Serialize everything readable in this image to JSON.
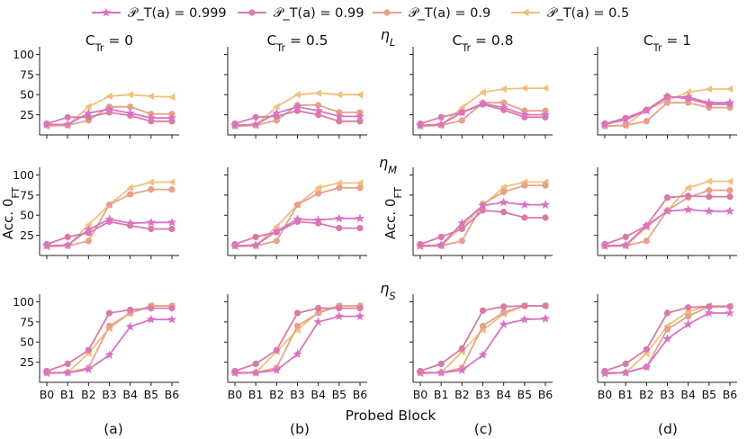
{
  "colors": {
    "p0999": "#d973c4",
    "p099": "#d97aa8",
    "p09": "#e8a08a",
    "p05": "#f0c07e"
  },
  "legend": [
    {
      "key": "p0999",
      "label": "𝒫_T(a) = 0.999",
      "marker": "star"
    },
    {
      "key": "p099",
      "label": "𝒫_T(a) = 0.99",
      "marker": "circle"
    },
    {
      "key": "p09",
      "label": "𝒫_T(a) = 0.9",
      "marker": "circle"
    },
    {
      "key": "p05",
      "label": "𝒫_T(a) = 0.5",
      "marker": "triangle-left"
    }
  ],
  "row_titles": [
    "η_L",
    "η_M",
    "η_S"
  ],
  "col_titles": [
    "C_Tr = 0",
    "C_Tr = 0.5",
    "C_Tr = 0.8",
    "C_Tr = 1"
  ],
  "col_letters": [
    "(a)",
    "(b)",
    "(c)",
    "(d)"
  ],
  "xlabel": "Probed Block",
  "ylabel": "Acc. 0_FT",
  "chart_data": {
    "type": "line",
    "categories": [
      "B0",
      "B1",
      "B2",
      "B3",
      "B4",
      "B5",
      "B6"
    ],
    "yticks": [
      25,
      50,
      75,
      100
    ],
    "ylim": [
      0,
      105
    ],
    "rows": [
      {
        "name": "η_L",
        "panels": [
          {
            "series": {
              "p0999": [
                13,
                13,
                27,
                32,
                27,
                21,
                21
              ],
              "p099": [
                14,
                22,
                22,
                28,
                24,
                17,
                17
              ],
              "p09": [
                12,
                12,
                18,
                35,
                35,
                26,
                26
              ],
              "p05": [
                11,
                12,
                35,
                48,
                50,
                48,
                47
              ]
            }
          },
          {
            "series": {
              "p0999": [
                12,
                13,
                27,
                35,
                30,
                23,
                23
              ],
              "p099": [
                14,
                22,
                23,
                30,
                25,
                17,
                17
              ],
              "p09": [
                11,
                12,
                18,
                37,
                37,
                28,
                28
              ],
              "p05": [
                11,
                12,
                35,
                50,
                52,
                50,
                50
              ]
            }
          },
          {
            "series": {
              "p0999": [
                12,
                13,
                28,
                39,
                34,
                25,
                25
              ],
              "p099": [
                14,
                22,
                28,
                38,
                31,
                22,
                22
              ],
              "p09": [
                11,
                12,
                18,
                40,
                40,
                30,
                30
              ],
              "p05": [
                11,
                12,
                34,
                53,
                57,
                58,
                58
              ]
            }
          },
          {
            "series": {
              "p0999": [
                13,
                19,
                30,
                47,
                47,
                40,
                40
              ],
              "p099": [
                14,
                21,
                31,
                48,
                45,
                38,
                38
              ],
              "p09": [
                11,
                12,
                17,
                40,
                40,
                34,
                34
              ],
              "p05": [
                11,
                12,
                31,
                43,
                53,
                57,
                57
              ]
            }
          }
        ]
      },
      {
        "name": "η_M",
        "panels": [
          {
            "series": {
              "p0999": [
                12,
                13,
                32,
                45,
                40,
                41,
                41
              ],
              "p099": [
                14,
                23,
                28,
                42,
                37,
                33,
                33
              ],
              "p09": [
                12,
                12,
                18,
                63,
                76,
                82,
                82
              ],
              "p05": [
                11,
                12,
                38,
                63,
                84,
                91,
                91
              ]
            }
          },
          {
            "series": {
              "p0999": [
                12,
                13,
                30,
                45,
                44,
                46,
                46
              ],
              "p099": [
                14,
                23,
                29,
                42,
                40,
                34,
                34
              ],
              "p09": [
                12,
                12,
                18,
                63,
                77,
                84,
                84
              ],
              "p05": [
                11,
                12,
                36,
                63,
                84,
                90,
                90
              ]
            }
          },
          {
            "series": {
              "p0999": [
                12,
                13,
                40,
                62,
                66,
                63,
                63
              ],
              "p099": [
                14,
                23,
                33,
                56,
                54,
                47,
                47
              ],
              "p09": [
                12,
                12,
                18,
                64,
                79,
                87,
                87
              ],
              "p05": [
                11,
                12,
                36,
                62,
                85,
                91,
                91
              ]
            }
          },
          {
            "series": {
              "p0999": [
                12,
                13,
                37,
                55,
                57,
                55,
                55
              ],
              "p099": [
                14,
                23,
                37,
                72,
                74,
                73,
                73
              ],
              "p09": [
                12,
                12,
                18,
                56,
                72,
                81,
                81
              ],
              "p05": [
                11,
                12,
                35,
                56,
                84,
                92,
                92
              ]
            }
          }
        ]
      },
      {
        "name": "η_S",
        "panels": [
          {
            "series": {
              "p0999": [
                12,
                12,
                16,
                34,
                69,
                78,
                78
              ],
              "p099": [
                14,
                23,
                40,
                86,
                90,
                92,
                92
              ],
              "p09": [
                12,
                12,
                18,
                70,
                86,
                95,
                95
              ],
              "p05": [
                11,
                12,
                36,
                67,
                86,
                95,
                95
              ]
            }
          },
          {
            "series": {
              "p0999": [
                12,
                12,
                15,
                35,
                75,
                82,
                82
              ],
              "p099": [
                14,
                23,
                40,
                86,
                92,
                92,
                92
              ],
              "p09": [
                12,
                12,
                18,
                70,
                86,
                95,
                95
              ],
              "p05": [
                11,
                12,
                38,
                65,
                87,
                95,
                95
              ]
            }
          },
          {
            "series": {
              "p0999": [
                12,
                12,
                15,
                34,
                72,
                78,
                79
              ],
              "p099": [
                14,
                23,
                42,
                89,
                94,
                95,
                95
              ],
              "p09": [
                12,
                12,
                18,
                70,
                87,
                95,
                95
              ],
              "p05": [
                11,
                12,
                38,
                65,
                85,
                95,
                95
              ]
            }
          },
          {
            "series": {
              "p0999": [
                11,
                12,
                19,
                54,
                72,
                86,
                86
              ],
              "p099": [
                14,
                23,
                41,
                86,
                93,
                94,
                94
              ],
              "p09": [
                12,
                12,
                19,
                66,
                82,
                94,
                94
              ],
              "p05": [
                11,
                12,
                36,
                70,
                88,
                95,
                95
              ]
            }
          }
        ]
      }
    ]
  }
}
